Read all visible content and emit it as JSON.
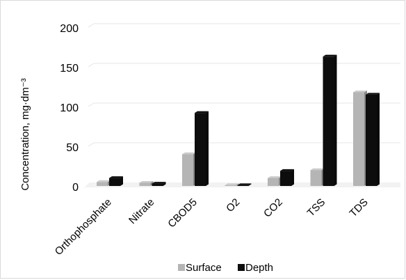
{
  "chart_data": {
    "type": "bar",
    "categories": [
      "Orthophosphate",
      "Nitrate",
      "CBOD5",
      "O2",
      "CO2",
      "TSS",
      "TDS"
    ],
    "series": [
      {
        "name": "Surface",
        "values": [
          5,
          4,
          40,
          1,
          10,
          20,
          118
        ],
        "color": "#b5b5b5"
      },
      {
        "name": "Depth",
        "values": [
          10,
          3,
          92,
          1,
          19,
          163,
          115
        ],
        "color": "#0d0d0d"
      }
    ],
    "ylabel": "Concentration, mg·dm⁻³",
    "yticks": [
      "0",
      "50",
      "100",
      "150",
      "200"
    ],
    "ylim": [
      0,
      200
    ],
    "grid": true,
    "legend_position": "bottom",
    "style": "3d-perspective-bars"
  }
}
